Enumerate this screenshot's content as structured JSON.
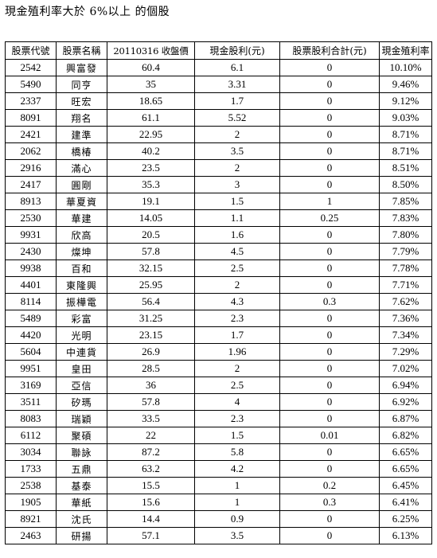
{
  "title": "現金殖利率大於 6%以上 的個股",
  "table": {
    "headers": [
      "股票代號",
      "股票名稱",
      "20110316 收盤價",
      "現金股利(元)",
      "股票股利合計(元)",
      "現金殖利率"
    ],
    "rows": [
      [
        "2542",
        "興富發",
        "60.4",
        "6.1",
        "0",
        "10.10%"
      ],
      [
        "5490",
        "同亨",
        "35",
        "3.31",
        "0",
        "9.46%"
      ],
      [
        "2337",
        "旺宏",
        "18.65",
        "1.7",
        "0",
        "9.12%"
      ],
      [
        "8091",
        "翔名",
        "61.1",
        "5.52",
        "0",
        "9.03%"
      ],
      [
        "2421",
        "建準",
        "22.95",
        "2",
        "0",
        "8.71%"
      ],
      [
        "2062",
        "橋椿",
        "40.2",
        "3.5",
        "0",
        "8.71%"
      ],
      [
        "2916",
        "滿心",
        "23.5",
        "2",
        "0",
        "8.51%"
      ],
      [
        "2417",
        "圓剛",
        "35.3",
        "3",
        "0",
        "8.50%"
      ],
      [
        "8913",
        "華夏資",
        "19.1",
        "1.5",
        "1",
        "7.85%"
      ],
      [
        "2530",
        "華建",
        "14.05",
        "1.1",
        "0.25",
        "7.83%"
      ],
      [
        "9931",
        "欣高",
        "20.5",
        "1.6",
        "0",
        "7.80%"
      ],
      [
        "2430",
        "燦坤",
        "57.8",
        "4.5",
        "0",
        "7.79%"
      ],
      [
        "9938",
        "百和",
        "32.15",
        "2.5",
        "0",
        "7.78%"
      ],
      [
        "4401",
        "東隆興",
        "25.95",
        "2",
        "0",
        "7.71%"
      ],
      [
        "8114",
        "振樺電",
        "56.4",
        "4.3",
        "0.3",
        "7.62%"
      ],
      [
        "5489",
        "彩富",
        "31.25",
        "2.3",
        "0",
        "7.36%"
      ],
      [
        "4420",
        "光明",
        "23.15",
        "1.7",
        "0",
        "7.34%"
      ],
      [
        "5604",
        "中連貨",
        "26.9",
        "1.96",
        "0",
        "7.29%"
      ],
      [
        "9951",
        "皇田",
        "28.5",
        "2",
        "0",
        "7.02%"
      ],
      [
        "3169",
        "亞信",
        "36",
        "2.5",
        "0",
        "6.94%"
      ],
      [
        "3511",
        "矽瑪",
        "57.8",
        "4",
        "0",
        "6.92%"
      ],
      [
        "8083",
        "瑞穎",
        "33.5",
        "2.3",
        "0",
        "6.87%"
      ],
      [
        "6112",
        "聚碩",
        "22",
        "1.5",
        "0.01",
        "6.82%"
      ],
      [
        "3034",
        "聯詠",
        "87.2",
        "5.8",
        "0",
        "6.65%"
      ],
      [
        "1733",
        "五鼎",
        "63.2",
        "4.2",
        "0",
        "6.65%"
      ],
      [
        "2538",
        "基泰",
        "15.5",
        "1",
        "0.2",
        "6.45%"
      ],
      [
        "1905",
        "華紙",
        "15.6",
        "1",
        "0.3",
        "6.41%"
      ],
      [
        "8921",
        "沈氏",
        "14.4",
        "0.9",
        "0",
        "6.25%"
      ],
      [
        "2463",
        "研揚",
        "57.1",
        "3.5",
        "0",
        "6.13%"
      ]
    ]
  }
}
